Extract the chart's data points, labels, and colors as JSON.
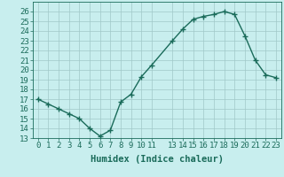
{
  "x": [
    0,
    1,
    2,
    3,
    4,
    5,
    6,
    7,
    8,
    9,
    10,
    11,
    13,
    14,
    15,
    16,
    17,
    18,
    19,
    20,
    21,
    22,
    23
  ],
  "y": [
    17,
    16.5,
    16,
    15.5,
    15,
    14,
    13.2,
    13.8,
    16.7,
    17.5,
    19.3,
    20.5,
    23,
    24.2,
    25.2,
    25.5,
    25.7,
    26,
    25.7,
    23.5,
    21,
    19.5,
    19.2
  ],
  "line_color": "#1a6b5a",
  "marker": "+",
  "marker_size": 4,
  "marker_lw": 1.0,
  "line_width": 1.0,
  "bg_color": "#c8eeee",
  "grid_color": "#a0c8c8",
  "xlabel": "Humidex (Indice chaleur)",
  "xlim": [
    -0.5,
    23.5
  ],
  "ylim": [
    13,
    27
  ],
  "yticks": [
    13,
    14,
    15,
    16,
    17,
    18,
    19,
    20,
    21,
    22,
    23,
    24,
    25,
    26
  ],
  "xticks": [
    0,
    1,
    2,
    3,
    4,
    5,
    6,
    7,
    8,
    9,
    10,
    11,
    13,
    14,
    15,
    16,
    17,
    18,
    19,
    20,
    21,
    22,
    23
  ],
  "tick_label_fontsize": 6.5,
  "xlabel_fontsize": 7.5,
  "tick_color": "#1a6b5a"
}
